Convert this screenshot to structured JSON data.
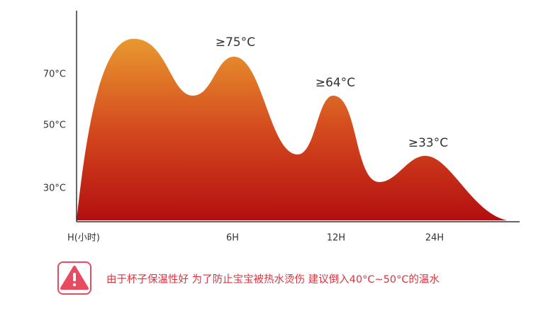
{
  "y_axis": {
    "labels": [
      "70°C",
      "50°C",
      "30°C"
    ]
  },
  "x_axis": {
    "labels": [
      "H(小时)",
      "6H",
      "12H",
      "24H"
    ]
  },
  "annotations": [
    "≥75°C",
    "≥64°C",
    "≥33°C"
  ],
  "notice": "由于杯子保温性好 为了防止宝宝被热水烫伤 建议倒入40°C~50°C的温水"
}
